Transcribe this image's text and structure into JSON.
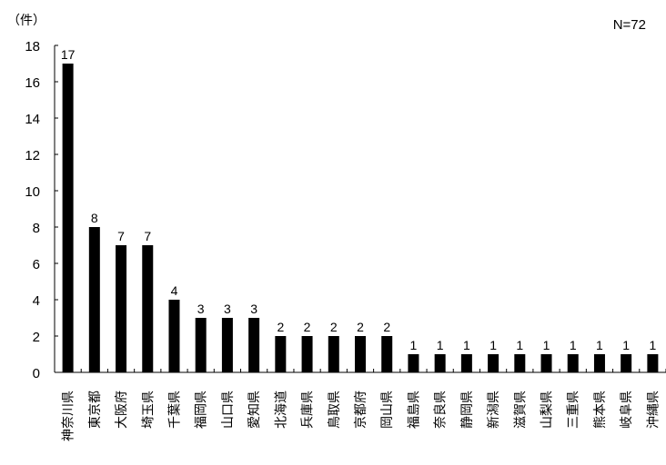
{
  "chart_data": {
    "type": "bar",
    "unit_label": "（件）",
    "note": "N=72",
    "categories": [
      "神奈川県",
      "東京都",
      "大阪府",
      "埼玉県",
      "千葉県",
      "福岡県",
      "山口県",
      "愛知県",
      "北海道",
      "兵庫県",
      "鳥取県",
      "京都府",
      "岡山県",
      "福島県",
      "奈良県",
      "静岡県",
      "新潟県",
      "滋賀県",
      "山梨県",
      "三重県",
      "熊本県",
      "岐阜県",
      "沖縄県"
    ],
    "values": [
      17,
      8,
      7,
      7,
      4,
      3,
      3,
      3,
      2,
      2,
      2,
      2,
      2,
      1,
      1,
      1,
      1,
      1,
      1,
      1,
      1,
      1,
      1
    ],
    "ylim": [
      0,
      18
    ],
    "yticks": [
      0,
      2,
      4,
      6,
      8,
      10,
      12,
      14,
      16,
      18
    ],
    "grid": false,
    "bar_color": "#000000",
    "data_labels": true
  }
}
